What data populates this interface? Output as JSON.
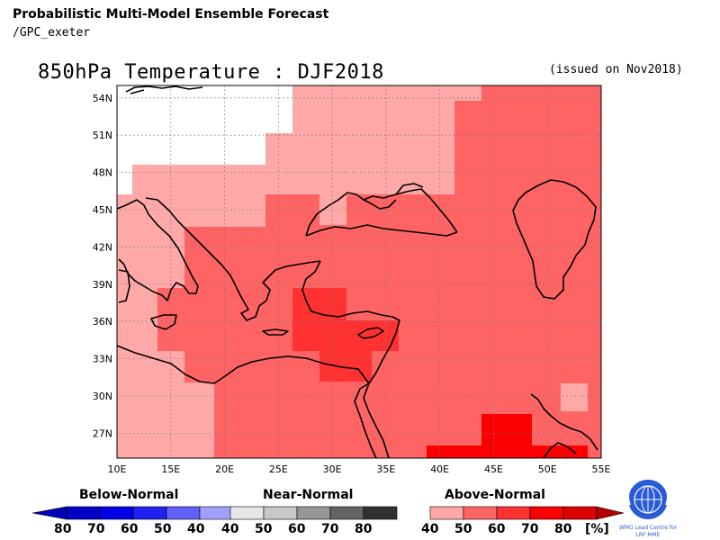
{
  "header": {
    "title": "Probabilistic Multi-Model Ensemble Forecast",
    "subtitle": "/GPC_exeter",
    "map_title": "850hPa Temperature : DJF2018",
    "issued": "(issued on Nov2018)"
  },
  "map": {
    "lon_range": [
      10,
      55
    ],
    "lat_range": [
      25,
      55
    ],
    "lon_ticks": [
      "10E",
      "15E",
      "20E",
      "25E",
      "30E",
      "35E",
      "40E",
      "45E",
      "50E",
      "55E"
    ],
    "lat_ticks": [
      "54N",
      "51N",
      "48N",
      "45N",
      "42N",
      "39N",
      "36N",
      "33N",
      "30N",
      "27N"
    ],
    "grid": true,
    "palette": {
      "white": "#ffffff",
      "a40": "#ffa8a8",
      "a50": "#ff6464",
      "a60": "#ff3232",
      "a70": "#fa0000",
      "coast": "#000000"
    }
  },
  "legend": {
    "below": {
      "title": "Below-Normal",
      "ticks": [
        "80",
        "70",
        "60",
        "50",
        "40"
      ],
      "colors": [
        "#0000c8",
        "#0000e6",
        "#2020f0",
        "#6060f8",
        "#a0a0ff"
      ],
      "arrow_color": "#0000b4"
    },
    "near": {
      "title": "Near-Normal",
      "ticks": [
        "40",
        "50",
        "60",
        "70",
        "80"
      ],
      "colors": [
        "#e6e6e6",
        "#c8c8c8",
        "#969696",
        "#646464",
        "#323232"
      ]
    },
    "above": {
      "title": "Above-Normal",
      "ticks": [
        "40",
        "50",
        "60",
        "70",
        "80"
      ],
      "unit": "[%]",
      "colors": [
        "#ffa8a8",
        "#ff6464",
        "#ff3232",
        "#fa0000",
        "#dc0000"
      ],
      "arrow_color": "#b40000"
    }
  },
  "logo": {
    "line1": "WMO Lead Centre for",
    "line2": "LRF MME"
  }
}
